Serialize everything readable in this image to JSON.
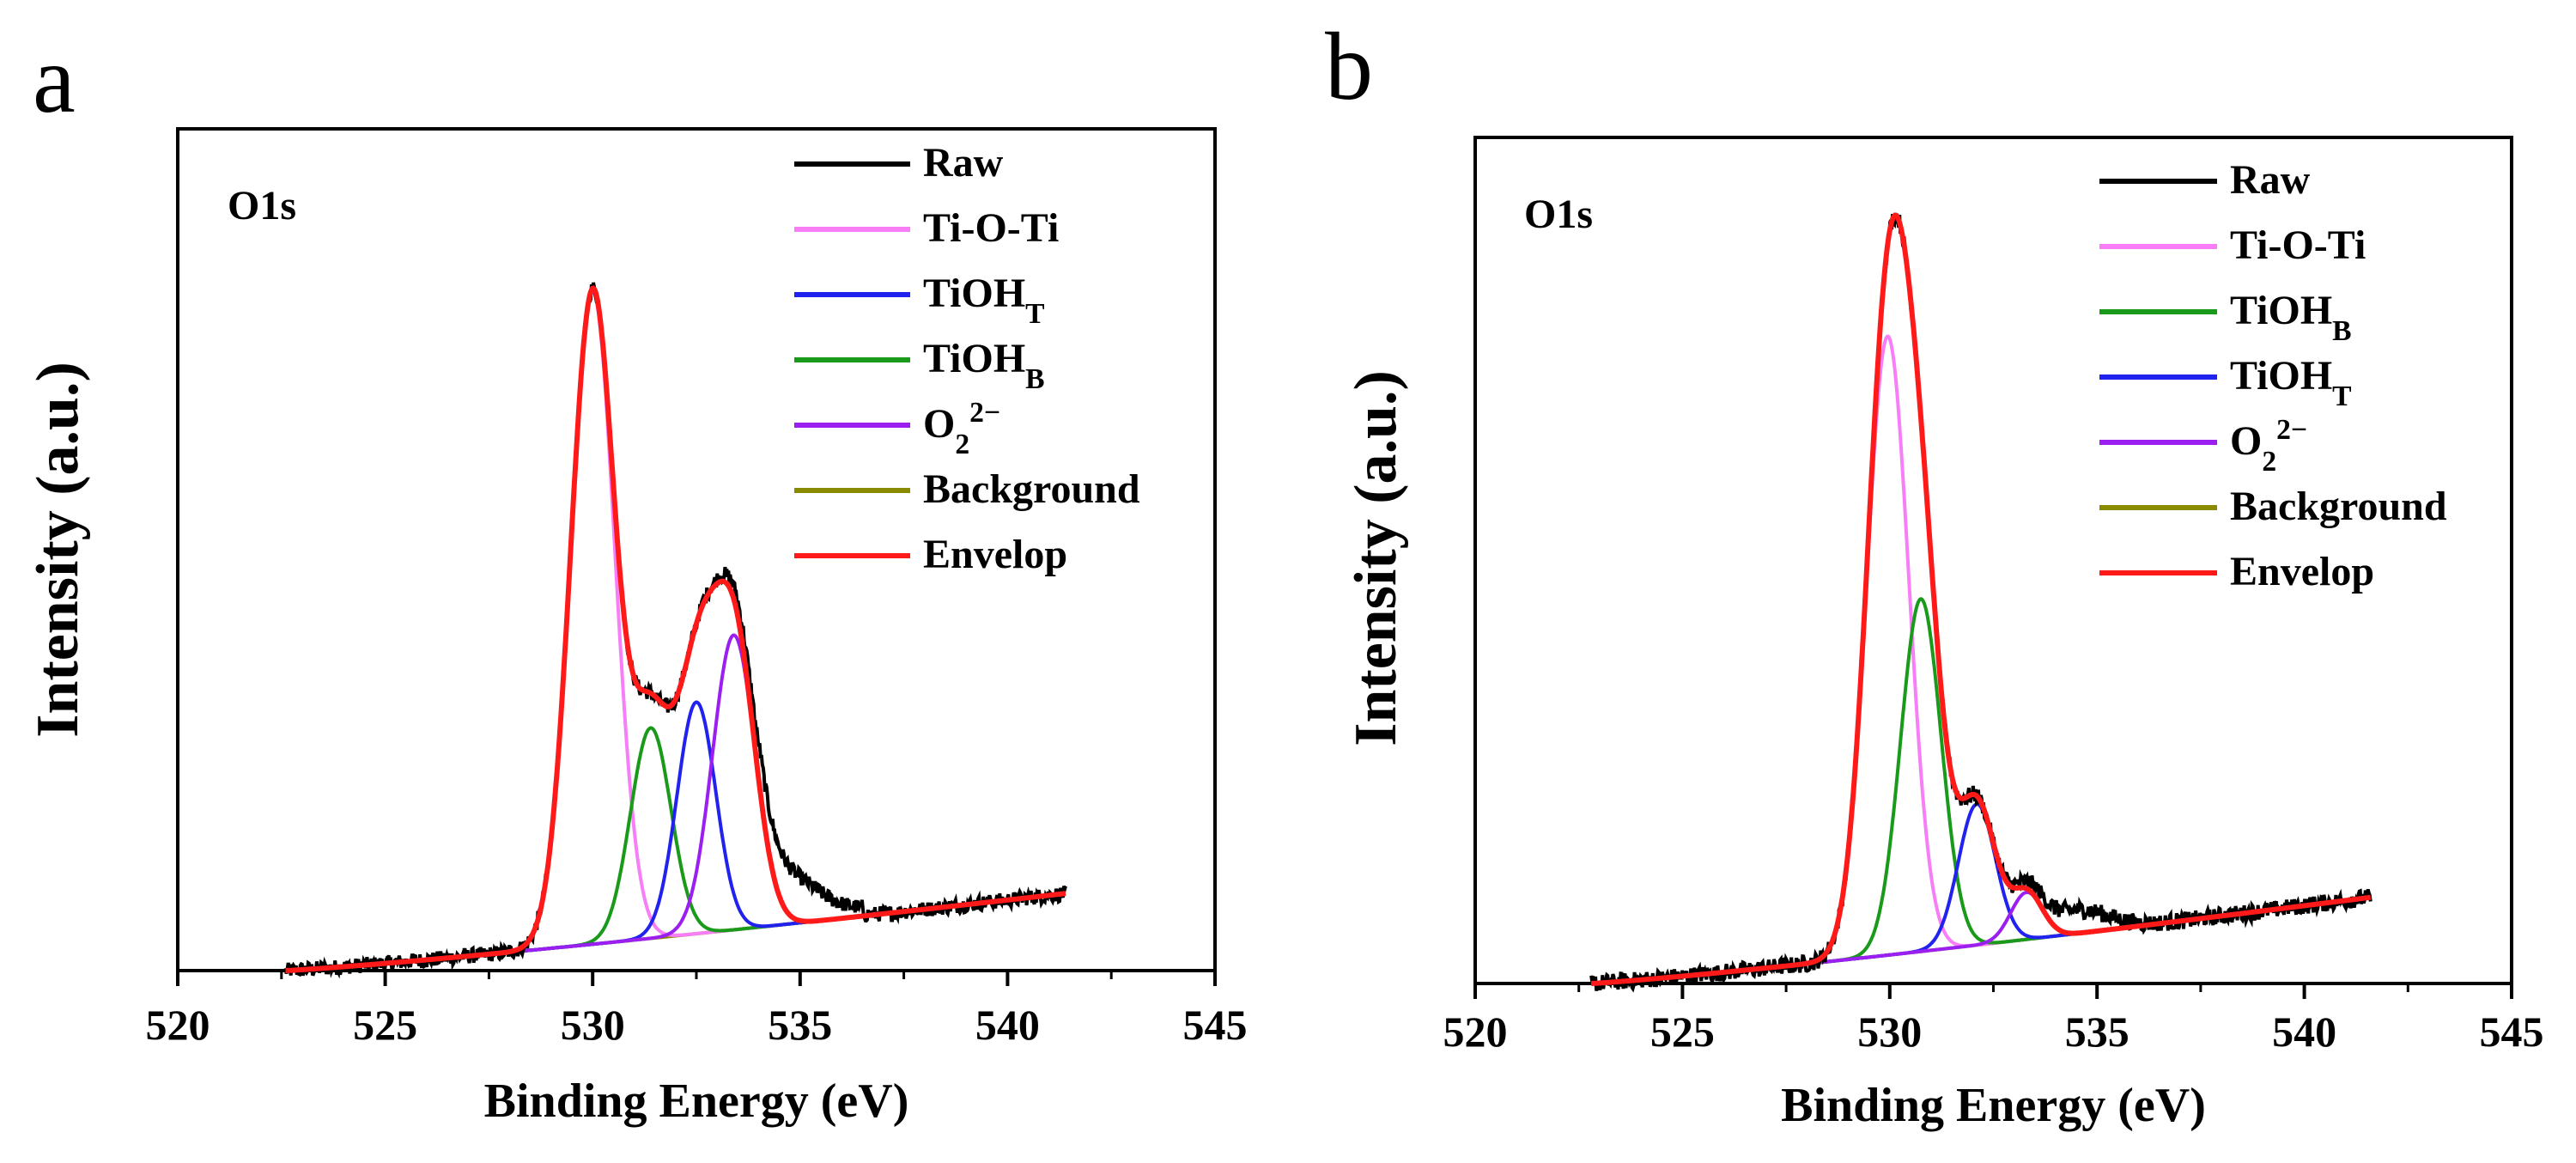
{
  "panels": [
    {
      "label": "a",
      "chart_data": {
        "type": "line",
        "title": "O1s",
        "xlabel": "Binding Energy (eV)",
        "ylabel": "Intensity (a.u.)",
        "xlim": [
          520,
          545
        ],
        "ylim": [
          0,
          1.2
        ],
        "xticks": [
          520,
          525,
          530,
          535,
          540,
          545
        ],
        "legend_position": "top-right",
        "legend": [
          {
            "name": "Raw",
            "html": "Raw"
          },
          {
            "name": "Ti-O-Ti",
            "html": "Ti-O-Ti"
          },
          {
            "name": "TiOHT",
            "html": "TiOH<tspan baseline-shift=\"sub\" font-size=\"70%\">T</tspan>"
          },
          {
            "name": "TiOHB",
            "html": "TiOH<tspan baseline-shift=\"sub\" font-size=\"70%\">B</tspan>"
          },
          {
            "name": "O2 2-",
            "html": "O<tspan baseline-shift=\"sub\" font-size=\"70%\">2</tspan><tspan baseline-shift=\"super\" font-size=\"70%\">2−</tspan>"
          },
          {
            "name": "Background",
            "html": "Background"
          },
          {
            "name": "Envelop",
            "html": "Envelop"
          }
        ],
        "x_range": [
          522.6,
          541.4
        ],
        "background_endpoints": [
          [
            522.6,
            0.0
          ],
          [
            541.4,
            0.11
          ]
        ],
        "components": [
          {
            "name": "Ti-O-Ti",
            "color": "#f77ef7",
            "center": 530.0,
            "height": 0.93,
            "fwhm": 1.25
          },
          {
            "name": "TiOHB",
            "color": "#1a9a1a",
            "center": 531.4,
            "height": 0.3,
            "fwhm": 1.15
          },
          {
            "name": "TiOHT",
            "color": "#2222ee",
            "center": 532.5,
            "height": 0.33,
            "fwhm": 1.1
          },
          {
            "name": "O2 2-",
            "color": "#9b1ff0",
            "center": 533.4,
            "height": 0.42,
            "fwhm": 1.2
          }
        ]
      }
    },
    {
      "label": "b",
      "chart_data": {
        "type": "line",
        "title": "O1s",
        "xlabel": "Binding Energy (eV)",
        "ylabel": "Intensity (a.u.)",
        "xlim": [
          520,
          545
        ],
        "ylim": [
          0,
          1.08
        ],
        "xticks": [
          520,
          525,
          530,
          535,
          540,
          545
        ],
        "legend_position": "top-right",
        "legend": [
          {
            "name": "Raw",
            "html": "Raw"
          },
          {
            "name": "Ti-O-Ti",
            "html": "Ti-O-Ti"
          },
          {
            "name": "TiOHB",
            "html": "TiOH<tspan baseline-shift=\"sub\" font-size=\"70%\">B</tspan>"
          },
          {
            "name": "TiOHT",
            "html": "TiOH<tspan baseline-shift=\"sub\" font-size=\"70%\">T</tspan>"
          },
          {
            "name": "O2 2-",
            "html": "O<tspan baseline-shift=\"sub\" font-size=\"70%\">2</tspan><tspan baseline-shift=\"super\" font-size=\"70%\">2−</tspan>"
          },
          {
            "name": "Background",
            "html": "Background"
          },
          {
            "name": "Envelop",
            "html": "Envelop"
          }
        ],
        "x_range": [
          522.8,
          541.6
        ],
        "background_endpoints": [
          [
            522.8,
            0.0
          ],
          [
            541.6,
            0.11
          ]
        ],
        "components": [
          {
            "name": "Ti-O-Ti",
            "color": "#f77ef7",
            "center": 529.95,
            "height": 0.79,
            "fwhm": 1.2
          },
          {
            "name": "TiOHB",
            "color": "#1a9a1a",
            "center": 530.75,
            "height": 0.45,
            "fwhm": 1.15
          },
          {
            "name": "TiOHT",
            "color": "#2222ee",
            "center": 532.1,
            "height": 0.18,
            "fwhm": 1.05
          },
          {
            "name": "O2 2-",
            "color": "#9b1ff0",
            "center": 533.3,
            "height": 0.06,
            "fwhm": 0.9
          }
        ]
      }
    }
  ],
  "colors": {
    "raw": "#000000",
    "envelop": "#ff1a1a",
    "background": "#8a8a00",
    "Ti-O-Ti": "#f77ef7",
    "TiOHT": "#2222ee",
    "TiOHB": "#1a9a1a",
    "O2 2-": "#9b1ff0"
  }
}
